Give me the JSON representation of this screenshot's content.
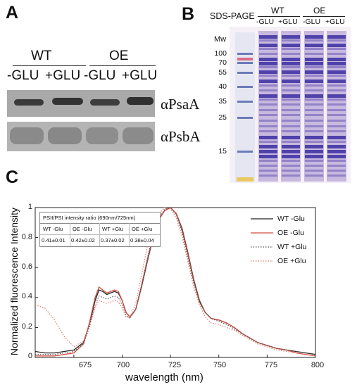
{
  "panels": {
    "a": {
      "letter": "A",
      "groups": [
        "WT",
        "OE"
      ],
      "lanes": [
        "-GLU",
        "+GLU",
        "-GLU",
        "+GLU"
      ],
      "blots": [
        "αPsaA",
        "αPsbA"
      ]
    },
    "b": {
      "letter": "B",
      "title": "SDS-PAGE",
      "groups": [
        "WT",
        "OE"
      ],
      "lanes": [
        "-GLU",
        "+GLU",
        "-GLU",
        "+GLU"
      ],
      "mw_label": "Mw",
      "markers": [
        "100",
        "70",
        "55",
        "40",
        "35",
        "25",
        "15"
      ]
    },
    "c": {
      "letter": "C"
    }
  },
  "chart_data": {
    "type": "line",
    "xlabel": "wavelength (nm)",
    "ylabel": "Normalized fluorescence Intensity",
    "xlim": [
      655,
      800
    ],
    "ylim": [
      0,
      1
    ],
    "xticks": [
      "675",
      "700",
      "725",
      "750",
      "775",
      "800"
    ],
    "yticks": [
      "0",
      "0.2",
      "0.4",
      "0.6",
      "0.8",
      "1"
    ],
    "legend_position": "top-right",
    "series": [
      {
        "name": "WT -Glu",
        "color": "#222222",
        "style": "solid",
        "x": [
          655,
          660,
          665,
          670,
          675,
          680,
          683,
          686,
          688,
          690,
          692,
          694,
          696,
          698,
          700,
          702,
          704,
          707,
          710,
          713,
          716,
          719,
          722,
          725,
          728,
          731,
          734,
          737,
          740,
          743,
          746,
          750,
          754,
          758,
          762,
          766,
          770,
          775,
          780,
          785,
          790,
          795,
          800
        ],
        "y": [
          0.04,
          0.03,
          0.03,
          0.04,
          0.05,
          0.1,
          0.22,
          0.38,
          0.45,
          0.44,
          0.42,
          0.43,
          0.44,
          0.43,
          0.38,
          0.3,
          0.27,
          0.32,
          0.47,
          0.64,
          0.8,
          0.92,
          0.98,
          1.0,
          0.96,
          0.86,
          0.7,
          0.52,
          0.38,
          0.3,
          0.26,
          0.25,
          0.23,
          0.2,
          0.16,
          0.13,
          0.1,
          0.08,
          0.06,
          0.05,
          0.04,
          0.03,
          0.02
        ]
      },
      {
        "name": "OE -Glu",
        "color": "#d14a3c",
        "style": "solid",
        "x": [
          655,
          660,
          665,
          670,
          675,
          680,
          683,
          686,
          688,
          690,
          692,
          694,
          696,
          698,
          700,
          702,
          704,
          707,
          710,
          713,
          716,
          719,
          722,
          725,
          728,
          731,
          734,
          737,
          740,
          743,
          746,
          750,
          754,
          758,
          762,
          766,
          770,
          775,
          780,
          785,
          790,
          795,
          800
        ],
        "y": [
          0.01,
          0.01,
          0.01,
          0.02,
          0.03,
          0.09,
          0.23,
          0.4,
          0.47,
          0.45,
          0.43,
          0.44,
          0.45,
          0.44,
          0.38,
          0.3,
          0.27,
          0.32,
          0.48,
          0.65,
          0.81,
          0.92,
          0.98,
          1.0,
          0.96,
          0.85,
          0.69,
          0.51,
          0.37,
          0.3,
          0.26,
          0.25,
          0.23,
          0.2,
          0.16,
          0.13,
          0.1,
          0.08,
          0.06,
          0.05,
          0.03,
          0.02,
          0.01
        ]
      },
      {
        "name": "WT +Glu",
        "color": "#555555",
        "style": "dotted",
        "x": [
          655,
          660,
          665,
          670,
          675,
          680,
          683,
          686,
          688,
          690,
          692,
          694,
          696,
          698,
          700,
          702,
          704,
          707,
          710,
          713,
          716,
          719,
          722,
          725,
          728,
          731,
          734,
          737,
          740,
          743,
          746,
          750,
          754,
          758,
          762,
          766,
          770,
          775,
          780,
          785,
          790,
          795,
          800
        ],
        "y": [
          0.02,
          0.02,
          0.02,
          0.03,
          0.04,
          0.09,
          0.2,
          0.35,
          0.41,
          0.4,
          0.39,
          0.4,
          0.41,
          0.4,
          0.35,
          0.28,
          0.26,
          0.32,
          0.48,
          0.66,
          0.82,
          0.93,
          0.99,
          1.0,
          0.95,
          0.84,
          0.67,
          0.5,
          0.37,
          0.3,
          0.26,
          0.24,
          0.22,
          0.19,
          0.16,
          0.13,
          0.1,
          0.08,
          0.06,
          0.05,
          0.04,
          0.03,
          0.02
        ]
      },
      {
        "name": "OE +Glu",
        "color": "#e07a70",
        "style": "dotted",
        "x": [
          655,
          660,
          665,
          670,
          675,
          680,
          683,
          686,
          688,
          690,
          692,
          694,
          696,
          698,
          700,
          702,
          704,
          707,
          710,
          713,
          716,
          719,
          722,
          725,
          728,
          731,
          734,
          737,
          740,
          743,
          746,
          750,
          754,
          758,
          762,
          766,
          770,
          775,
          780,
          785,
          790,
          795,
          800
        ],
        "y": [
          0.35,
          0.33,
          0.25,
          0.14,
          0.07,
          0.11,
          0.22,
          0.33,
          0.38,
          0.37,
          0.36,
          0.37,
          0.38,
          0.37,
          0.33,
          0.27,
          0.27,
          0.36,
          0.55,
          0.74,
          0.88,
          0.96,
          1.0,
          0.99,
          0.93,
          0.81,
          0.64,
          0.47,
          0.35,
          0.27,
          0.23,
          0.22,
          0.2,
          0.18,
          0.15,
          0.12,
          0.09,
          0.07,
          0.05,
          0.04,
          0.03,
          0.02,
          0.01
        ]
      }
    ],
    "annotation_table": {
      "title": "PSII/PSI intensity ratio (690nm/725nm)",
      "headers": [
        "WT -Glu",
        "OE -Glu",
        "WT +Glu",
        "OE +Glu"
      ],
      "values": [
        "0.41±0.01",
        "0.42±0.02",
        "0.37±0.02",
        "0.38±0.04"
      ]
    }
  }
}
